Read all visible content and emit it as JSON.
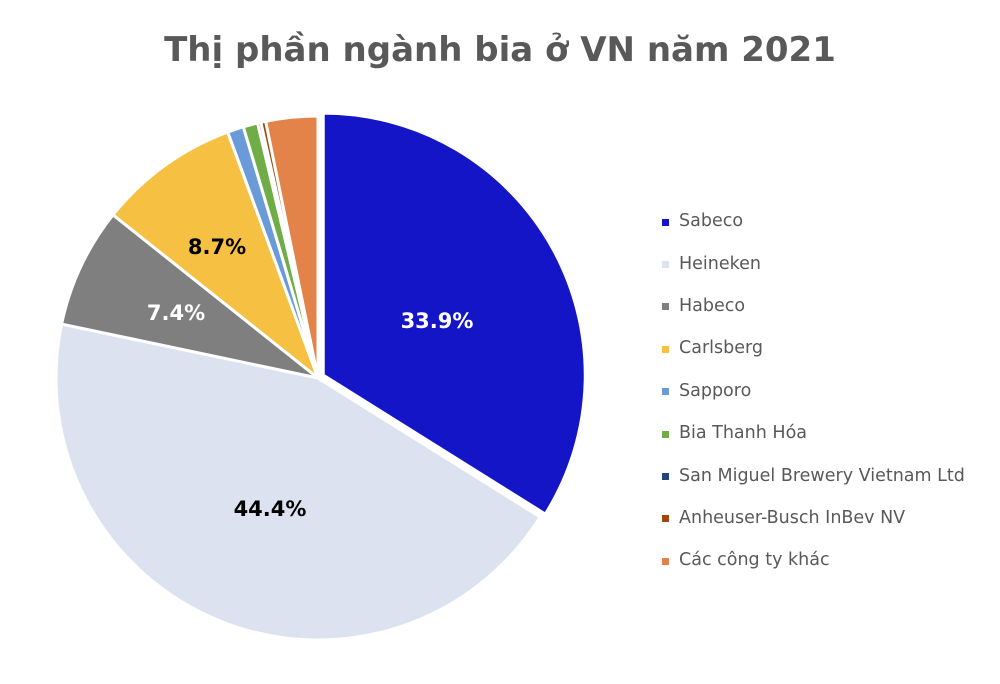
{
  "title": "Thị phần ngành bia ở VN năm 2021",
  "chart_data": {
    "type": "pie",
    "title": "Thị phần ngành bia ở VN năm 2021",
    "start_angle": "12 o'clock",
    "direction": "clockwise",
    "legend_position": "right",
    "categories": [
      "Sabeco",
      "Heineken",
      "Habeco",
      "Carlsberg",
      "Sapporo",
      "Bia Thanh Hóa",
      "San Miguel Brewery Vietnam Ltd",
      "Anheuser-Busch InBev NV",
      "Các công ty khác"
    ],
    "values": [
      33.9,
      44.4,
      7.4,
      8.7,
      1.0,
      0.9,
      0.2,
      0.3,
      3.2
    ],
    "colors": [
      "#1515c8",
      "#dde2f1",
      "#7f7f7f",
      "#f6c142",
      "#6a9bd8",
      "#70ad47",
      "#264478",
      "#9e480e",
      "#e3834a"
    ],
    "data_labels": [
      {
        "category": "Sabeco",
        "text": "33.9%",
        "color": "#ffffff"
      },
      {
        "category": "Heineken",
        "text": "44.4%",
        "color": "#000000"
      },
      {
        "category": "Habeco",
        "text": "7.4%",
        "color": "#ffffff"
      },
      {
        "category": "Carlsberg",
        "text": "8.7%",
        "color": "#000000"
      }
    ]
  },
  "legend": {
    "items": [
      {
        "label": "Sabeco",
        "color": "#1515c8"
      },
      {
        "label": "Heineken",
        "color": "#dde2f1"
      },
      {
        "label": "Habeco",
        "color": "#7f7f7f"
      },
      {
        "label": "Carlsberg",
        "color": "#f6c142"
      },
      {
        "label": "Sapporo",
        "color": "#6a9bd8"
      },
      {
        "label": "Bia Thanh Hóa",
        "color": "#70ad47"
      },
      {
        "label": "San Miguel Brewery Vietnam Ltd",
        "color": "#264478"
      },
      {
        "label": "Anheuser-Busch InBev NV",
        "color": "#9e480e"
      },
      {
        "label": "Các công ty khác",
        "color": "#e3834a"
      }
    ]
  },
  "labels": {
    "sabeco": "33.9%",
    "heineken": "44.4%",
    "habeco": "7.4%",
    "carlsberg": "8.7%"
  }
}
